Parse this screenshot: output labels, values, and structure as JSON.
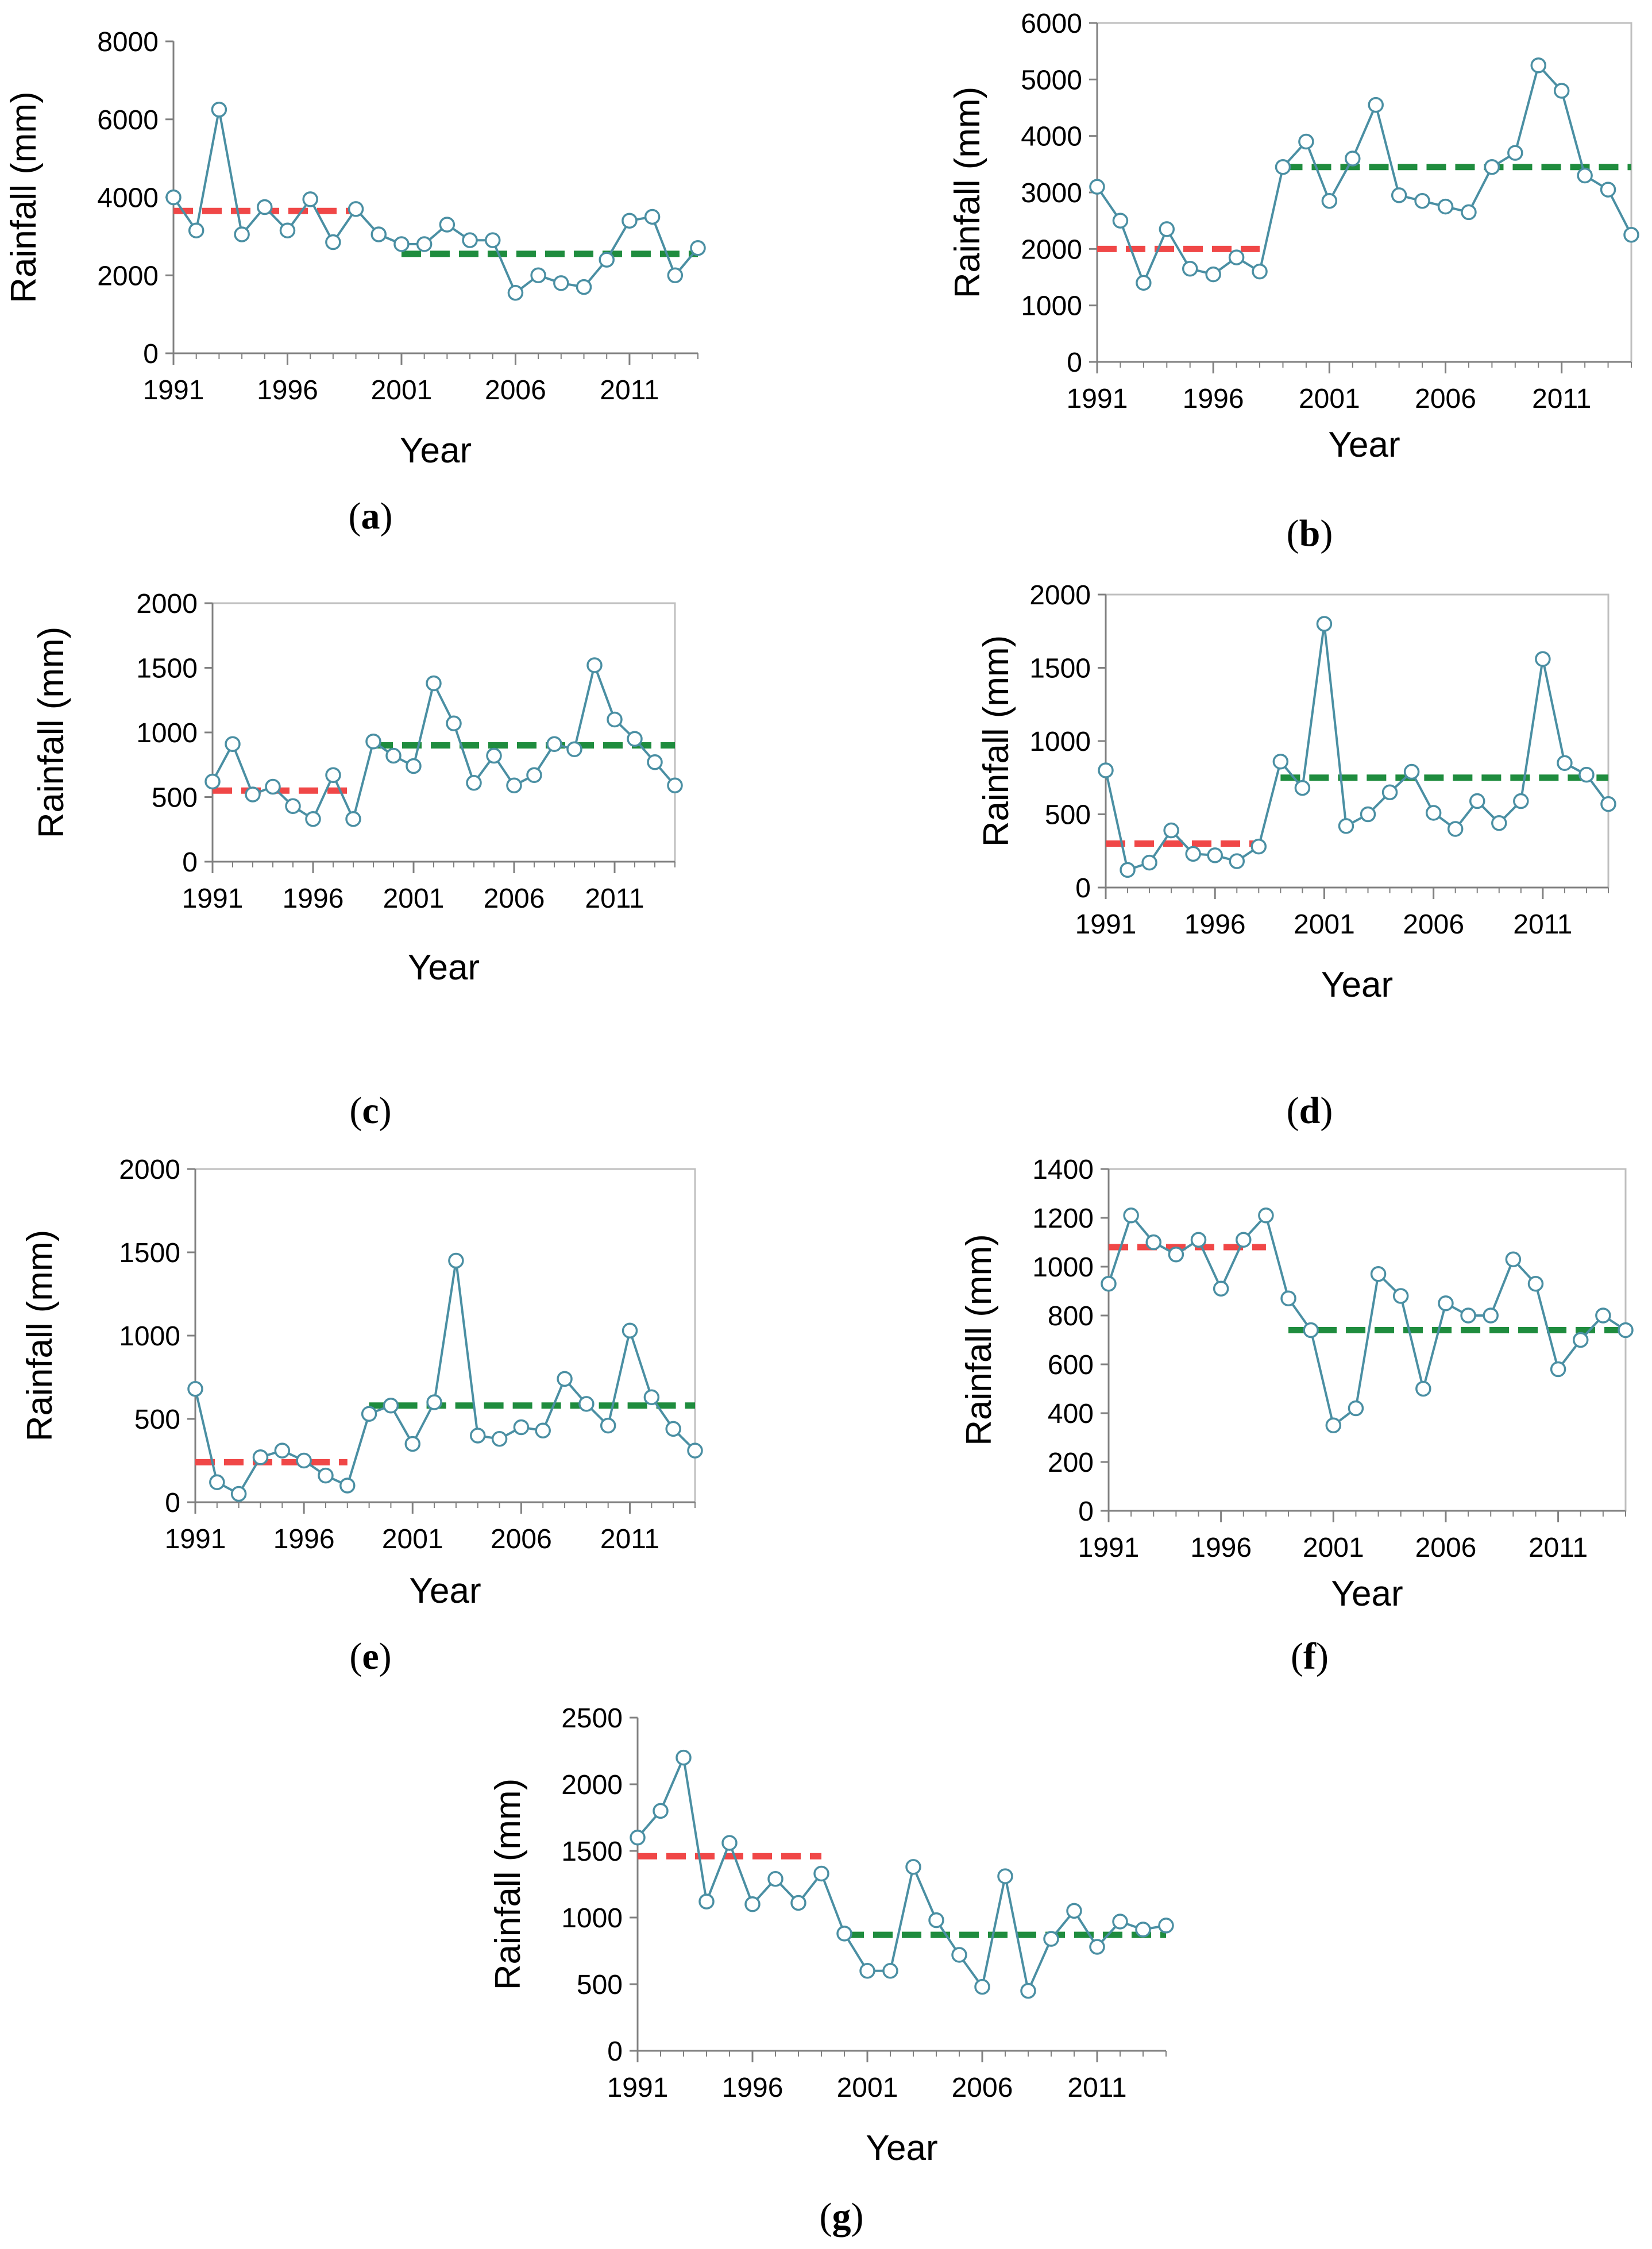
{
  "figure": {
    "colors": {
      "series": "#4a8fa3",
      "before_mean": "#f04747",
      "after_mean": "#1f8c3e",
      "frame": "#bfbfbf",
      "axis": "#808080"
    }
  },
  "chart_data": [
    {
      "id": "a",
      "type": "line",
      "panel_label": "a",
      "xlabel": "Year",
      "ylabel": "Rainfall (mm)",
      "xlim": [
        1991,
        2014
      ],
      "ylim": [
        0,
        8000
      ],
      "x_ticks": [
        "1991",
        "1996",
        "2001",
        "2006",
        "2011"
      ],
      "y_ticks": [
        "0",
        "2000",
        "4000",
        "6000",
        "8000"
      ],
      "boxed": false,
      "series": [
        {
          "name": "Rainfall",
          "x": [
            1991,
            1992,
            1993,
            1994,
            1995,
            1996,
            1997,
            1998,
            1999,
            2000,
            2001,
            2002,
            2003,
            2004,
            2005,
            2006,
            2007,
            2008,
            2009,
            2010,
            2011,
            2012,
            2013,
            2014
          ],
          "values": [
            4000,
            3150,
            6250,
            3050,
            3750,
            3150,
            3950,
            2850,
            3700,
            3050,
            2800,
            2800,
            3300,
            2900,
            2900,
            1550,
            2000,
            1800,
            1700,
            2400,
            3400,
            3500,
            2000,
            2700
          ]
        }
      ],
      "means": [
        {
          "name": "before",
          "value": 3650,
          "x_start": 1991,
          "x_end": 1999
        },
        {
          "name": "after",
          "value": 2550,
          "x_start": 2001,
          "x_end": 2014
        }
      ]
    },
    {
      "id": "b",
      "type": "line",
      "panel_label": "b",
      "xlabel": "Year",
      "ylabel": "Rainfall (mm)",
      "xlim": [
        1991,
        2014
      ],
      "ylim": [
        0,
        6000
      ],
      "x_ticks": [
        "1991",
        "1996",
        "2001",
        "2006",
        "2011"
      ],
      "y_ticks": [
        "0",
        "1000",
        "2000",
        "3000",
        "4000",
        "5000",
        "6000"
      ],
      "boxed": true,
      "series": [
        {
          "name": "Rainfall",
          "x": [
            1991,
            1992,
            1993,
            1994,
            1995,
            1996,
            1997,
            1998,
            1999,
            2000,
            2001,
            2002,
            2003,
            2004,
            2005,
            2006,
            2007,
            2008,
            2009,
            2010,
            2011,
            2012,
            2013,
            2014
          ],
          "values": [
            3100,
            2500,
            1400,
            2350,
            1650,
            1550,
            1850,
            1600,
            3450,
            3900,
            2850,
            3600,
            4550,
            2950,
            2850,
            2750,
            2650,
            3450,
            3700,
            5250,
            4800,
            3300,
            3050,
            2250
          ]
        }
      ],
      "means": [
        {
          "name": "before",
          "value": 2000,
          "x_start": 1991,
          "x_end": 1998
        },
        {
          "name": "after",
          "value": 3450,
          "x_start": 1999,
          "x_end": 2014
        }
      ]
    },
    {
      "id": "c",
      "type": "line",
      "panel_label": "c",
      "xlabel": "Year",
      "ylabel": "Rainfall (mm)",
      "xlim": [
        1991,
        2014
      ],
      "ylim": [
        0,
        2000
      ],
      "x_ticks": [
        "1991",
        "1996",
        "2001",
        "2006",
        "2011"
      ],
      "y_ticks": [
        "0",
        "500",
        "1000",
        "1500",
        "2000"
      ],
      "boxed": true,
      "series": [
        {
          "name": "Rainfall",
          "x": [
            1991,
            1992,
            1993,
            1994,
            1995,
            1996,
            1997,
            1998,
            1999,
            2000,
            2001,
            2002,
            2003,
            2004,
            2005,
            2006,
            2007,
            2008,
            2009,
            2010,
            2011,
            2012,
            2013,
            2014
          ],
          "values": [
            620,
            910,
            520,
            580,
            430,
            330,
            670,
            330,
            930,
            820,
            740,
            1380,
            1070,
            610,
            820,
            590,
            670,
            910,
            870,
            1520,
            1100,
            950,
            770,
            590
          ]
        }
      ],
      "means": [
        {
          "name": "before",
          "value": 550,
          "x_start": 1991,
          "x_end": 1998
        },
        {
          "name": "after",
          "value": 900,
          "x_start": 1999,
          "x_end": 2014
        }
      ]
    },
    {
      "id": "d",
      "type": "line",
      "panel_label": "d",
      "xlabel": "Year",
      "ylabel": "Rainfall (mm)",
      "xlim": [
        1991,
        2014
      ],
      "ylim": [
        0,
        2000
      ],
      "x_ticks": [
        "1991",
        "1996",
        "2001",
        "2006",
        "2011"
      ],
      "y_ticks": [
        "0",
        "500",
        "1000",
        "1500",
        "2000"
      ],
      "boxed": true,
      "series": [
        {
          "name": "Rainfall",
          "x": [
            1991,
            1992,
            1993,
            1994,
            1995,
            1996,
            1997,
            1998,
            1999,
            2000,
            2001,
            2002,
            2003,
            2004,
            2005,
            2006,
            2007,
            2008,
            2009,
            2010,
            2011,
            2012,
            2013,
            2014
          ],
          "values": [
            800,
            120,
            170,
            390,
            230,
            220,
            180,
            280,
            860,
            680,
            1800,
            420,
            500,
            650,
            790,
            510,
            400,
            590,
            440,
            590,
            1560,
            850,
            770,
            570
          ]
        }
      ],
      "means": [
        {
          "name": "before",
          "value": 300,
          "x_start": 1991,
          "x_end": 1998
        },
        {
          "name": "after",
          "value": 750,
          "x_start": 1999,
          "x_end": 2014
        }
      ]
    },
    {
      "id": "e",
      "type": "line",
      "panel_label": "e",
      "xlabel": "Year",
      "ylabel": "Rainfall (mm)",
      "xlim": [
        1991,
        2014
      ],
      "ylim": [
        0,
        2000
      ],
      "x_ticks": [
        "1991",
        "1996",
        "2001",
        "2006",
        "2011"
      ],
      "y_ticks": [
        "0",
        "500",
        "1000",
        "1500",
        "2000"
      ],
      "boxed": true,
      "series": [
        {
          "name": "Rainfall",
          "x": [
            1991,
            1992,
            1993,
            1994,
            1995,
            1996,
            1997,
            1998,
            1999,
            2000,
            2001,
            2002,
            2003,
            2004,
            2005,
            2006,
            2007,
            2008,
            2009,
            2010,
            2011,
            2012,
            2013,
            2014
          ],
          "values": [
            680,
            120,
            50,
            270,
            310,
            250,
            160,
            100,
            530,
            580,
            350,
            600,
            1450,
            400,
            380,
            450,
            430,
            740,
            590,
            460,
            1030,
            630,
            440,
            310
          ]
        }
      ],
      "means": [
        {
          "name": "before",
          "value": 240,
          "x_start": 1991,
          "x_end": 1998
        },
        {
          "name": "after",
          "value": 580,
          "x_start": 1999,
          "x_end": 2014
        }
      ]
    },
    {
      "id": "f",
      "type": "line",
      "panel_label": "f",
      "xlabel": "Year",
      "ylabel": "Rainfall (mm)",
      "xlim": [
        1991,
        2014
      ],
      "ylim": [
        0,
        1400
      ],
      "x_ticks": [
        "1991",
        "1996",
        "2001",
        "2006",
        "2011"
      ],
      "y_ticks": [
        "0",
        "200",
        "400",
        "600",
        "800",
        "1000",
        "1200",
        "1400"
      ],
      "boxed": true,
      "series": [
        {
          "name": "Rainfall",
          "x": [
            1991,
            1992,
            1993,
            1994,
            1995,
            1996,
            1997,
            1998,
            1999,
            2000,
            2001,
            2002,
            2003,
            2004,
            2005,
            2006,
            2007,
            2008,
            2009,
            2010,
            2011,
            2012,
            2013,
            2014
          ],
          "values": [
            930,
            1210,
            1100,
            1050,
            1110,
            910,
            1110,
            1210,
            870,
            740,
            350,
            420,
            970,
            880,
            500,
            850,
            800,
            800,
            1030,
            930,
            580,
            700,
            800,
            740
          ]
        }
      ],
      "means": [
        {
          "name": "before",
          "value": 1080,
          "x_start": 1991,
          "x_end": 1998
        },
        {
          "name": "after",
          "value": 740,
          "x_start": 1999,
          "x_end": 2014
        }
      ]
    },
    {
      "id": "g",
      "type": "line",
      "panel_label": "g",
      "xlabel": "Year",
      "ylabel": "Rainfall (mm)",
      "xlim": [
        1991,
        2014
      ],
      "ylim": [
        0,
        2500
      ],
      "x_ticks": [
        "1991",
        "1996",
        "2001",
        "2006",
        "2011"
      ],
      "y_ticks": [
        "0",
        "500",
        "1000",
        "1500",
        "2000",
        "2500"
      ],
      "boxed": false,
      "series": [
        {
          "name": "Rainfall",
          "x": [
            1991,
            1992,
            1993,
            1994,
            1995,
            1996,
            1997,
            1998,
            1999,
            2000,
            2001,
            2002,
            2003,
            2004,
            2005,
            2006,
            2007,
            2008,
            2009,
            2010,
            2011,
            2012,
            2013,
            2014
          ],
          "values": [
            1600,
            1800,
            2200,
            1120,
            1560,
            1100,
            1290,
            1110,
            1330,
            880,
            600,
            600,
            1380,
            980,
            720,
            480,
            1310,
            450,
            840,
            1050,
            780,
            970,
            910,
            940
          ]
        }
      ],
      "means": [
        {
          "name": "before",
          "value": 1460,
          "x_start": 1991,
          "x_end": 1999
        },
        {
          "name": "after",
          "value": 870,
          "x_start": 2000,
          "x_end": 2014
        }
      ]
    }
  ]
}
